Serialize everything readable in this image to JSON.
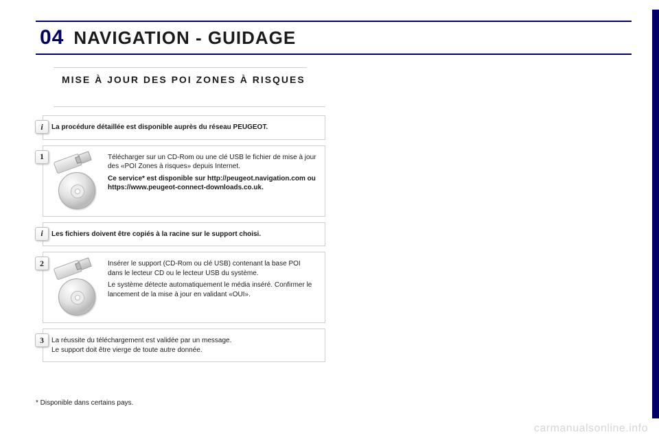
{
  "colors": {
    "accent": "#000066",
    "text": "#1a1a1a",
    "border": "#cfcfcf",
    "badge_border": "#bdbdbd",
    "watermark": "#d6d6d6",
    "page_bg": "#ffffff"
  },
  "header": {
    "number": "04",
    "title": "NAVIGATION - GUIDAGE"
  },
  "subhead": "MISE À JOUR DES POI ZONES À RISQUES",
  "rows": {
    "intro": {
      "badge": "i",
      "text": "La procédure détaillée est disponible auprès du réseau PEUGEOT."
    },
    "step1": {
      "badge": "1",
      "p1": "Télécharger sur un CD-Rom ou une clé USB le fichier de mise à jour des «POI Zones à risques» depuis Internet.",
      "p2": "Ce service* est disponible sur http://peugeot.navigation.com ou https://www.peugeot-connect-downloads.co.uk."
    },
    "note1": {
      "badge": "i",
      "text": "Les fichiers doivent être copiés à la racine sur le support choisi."
    },
    "step2": {
      "badge": "2",
      "p1": "Insérer le support (CD-Rom ou clé USB) contenant la base POI dans le lecteur CD ou le lecteur USB du système.",
      "p2": "Le système détecte automatiquement le média inséré. Confirmer le lancement de la mise à jour en validant «OUI»."
    },
    "step3": {
      "badge": "3",
      "line1": "La réussite du téléchargement est validée par un message.",
      "line2": "Le support doit être vierge de toute autre donnée."
    }
  },
  "footnote": "* Disponible dans certains pays.",
  "watermark": "carmanualsonline.info"
}
